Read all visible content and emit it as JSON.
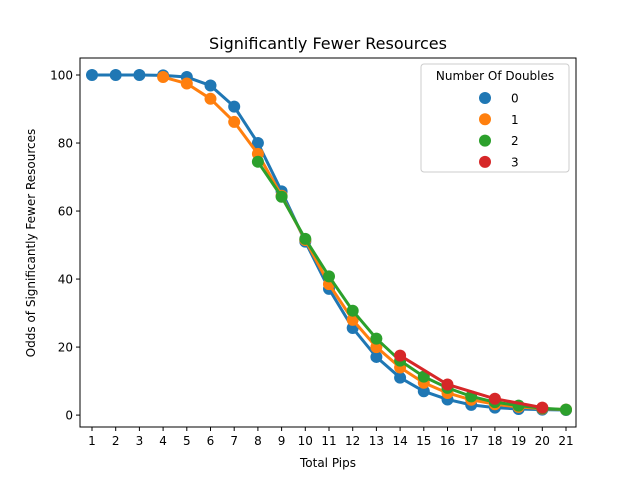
{
  "chart_data": {
    "type": "line",
    "title": "Significantly Fewer Resources",
    "xlabel": "Total Pips",
    "ylabel": "Odds of Significantly Fewer Resources",
    "categories": [
      "1",
      "2",
      "3",
      "4",
      "5",
      "6",
      "7",
      "8",
      "9",
      "10",
      "11",
      "12",
      "13",
      "14",
      "15",
      "16",
      "17",
      "18",
      "19",
      "20",
      "21"
    ],
    "ylim": [
      -3.5,
      105
    ],
    "yticks": [
      "0",
      "20",
      "40",
      "60",
      "80",
      "100"
    ],
    "grid": false,
    "legend": {
      "title": "Number Of Doubles",
      "placement": "top-right"
    },
    "series": [
      {
        "name": "0",
        "color": "#1f77b4",
        "x": [
          1,
          2,
          3,
          4,
          5,
          6,
          7,
          8,
          9,
          10,
          11,
          12,
          13,
          14,
          15,
          16,
          17,
          18,
          19,
          20,
          21
        ],
        "values": [
          100,
          100,
          100,
          99.9,
          99.4,
          96.9,
          90.7,
          80.0,
          65.8,
          51.0,
          37.1,
          25.6,
          17.1,
          11.0,
          7.0,
          4.6,
          3.0,
          2.2,
          1.8,
          1.6,
          1.5
        ]
      },
      {
        "name": "1",
        "color": "#ff7f0e",
        "x": [
          4,
          5,
          6,
          7,
          8,
          9,
          10,
          11,
          12,
          13,
          14,
          15,
          16,
          17,
          18,
          19,
          20,
          21
        ],
        "values": [
          99.4,
          97.5,
          93.0,
          86.2,
          76.8,
          64.5,
          51.5,
          38.5,
          28.0,
          20.0,
          14.0,
          9.5,
          6.5,
          4.5,
          3.2,
          2.4,
          1.9,
          1.6
        ]
      },
      {
        "name": "2",
        "color": "#2ca02c",
        "x": [
          8,
          9,
          10,
          11,
          12,
          13,
          14,
          15,
          16,
          17,
          18,
          19,
          20,
          21
        ],
        "values": [
          74.5,
          64.2,
          51.8,
          40.8,
          30.7,
          22.5,
          16.0,
          11.3,
          8.0,
          5.5,
          3.8,
          2.8,
          2.0,
          1.6
        ]
      },
      {
        "name": "3",
        "color": "#d62728",
        "x": [
          14,
          16,
          18,
          20
        ],
        "values": [
          17.5,
          9.0,
          4.8,
          2.2
        ]
      }
    ]
  }
}
